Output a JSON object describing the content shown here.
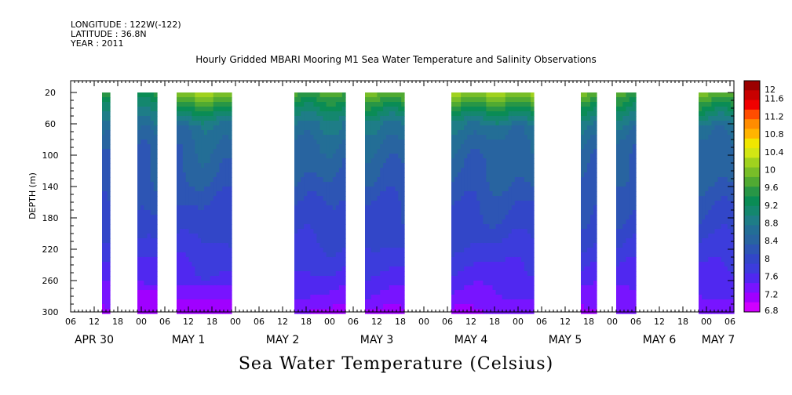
{
  "header": {
    "longitude": "LONGITUDE : 122W(-122)",
    "latitude": "LATITUDE : 36.8N",
    "year": "YEAR : 2011"
  },
  "title": "Hourly Gridded MBARI Mooring M1 Sea Water Temperature and Salinity Observations",
  "chart_data": {
    "type": "heatmap",
    "title": "Hourly Gridded MBARI Mooring M1 Sea Water Temperature and Salinity Observations",
    "xlabel": "",
    "ylabel": "DEPTH (m)",
    "colorbar_label": "Sea Water Temperature (Celsius)",
    "x_unit": "hours since APR 30 06:00, 2011",
    "xlim": [
      0,
      169
    ],
    "ylim": [
      300,
      5
    ],
    "y_ticks": [
      20,
      60,
      100,
      140,
      180,
      220,
      260,
      300
    ],
    "x_hour_tick_labels": [
      "06",
      "12",
      "18",
      "00",
      "06",
      "12",
      "18",
      "00",
      "06",
      "12",
      "18",
      "00",
      "06",
      "12",
      "18",
      "00",
      "06",
      "12",
      "18",
      "00",
      "06",
      "12",
      "18",
      "00",
      "06",
      "12",
      "18",
      "00",
      "06"
    ],
    "x_day_labels": [
      {
        "label": "APR 30",
        "hour": 6
      },
      {
        "label": "MAY  1",
        "hour": 30
      },
      {
        "label": "MAY  2",
        "hour": 54
      },
      {
        "label": "MAY  3",
        "hour": 78
      },
      {
        "label": "MAY  4",
        "hour": 102
      },
      {
        "label": "MAY  5",
        "hour": 126
      },
      {
        "label": "MAY  6",
        "hour": 150
      },
      {
        "label": "MAY  7",
        "hour": 174
      }
    ],
    "colorbar_levels": [
      12,
      11.6,
      11.2,
      10.8,
      10.4,
      10,
      9.6,
      9.2,
      8.8,
      8.4,
      8,
      7.6,
      7.2,
      6.8
    ],
    "colorbar_colors": [
      "#9b0000",
      "#c80000",
      "#f00000",
      "#ff4d00",
      "#ff8c00",
      "#ffb400",
      "#f0e600",
      "#d2e614",
      "#a0d21e",
      "#78be28",
      "#50aa32",
      "#289646",
      "#0a8c55",
      "#14876e",
      "#1e7d87",
      "#236e96",
      "#2864a0",
      "#2d55b4",
      "#3246c8",
      "#3c3cdc",
      "#5028f0",
      "#7814ff",
      "#a000ff",
      "#d000ff"
    ],
    "observation_segments": [
      {
        "start": 8,
        "end": 10,
        "surface_max": 9.6,
        "bottom_min": 7.2
      },
      {
        "start": 17,
        "end": 22,
        "surface_max": 9.4,
        "bottom_min": 6.9
      },
      {
        "start": 27,
        "end": 41,
        "surface_max": 10.0,
        "bottom_min": 7.0
      },
      {
        "start": 57,
        "end": 70,
        "surface_max": 9.6,
        "bottom_min": 7.2
      },
      {
        "start": 75,
        "end": 85,
        "surface_max": 9.8,
        "bottom_min": 7.4
      },
      {
        "start": 97,
        "end": 118,
        "surface_max": 10.0,
        "bottom_min": 7.4
      },
      {
        "start": 130,
        "end": 134,
        "surface_max": 9.8,
        "bottom_min": 7.4
      },
      {
        "start": 139,
        "end": 144,
        "surface_max": 9.6,
        "bottom_min": 7.3
      },
      {
        "start": 160,
        "end": 169,
        "surface_max": 9.8,
        "bottom_min": 7.2
      }
    ],
    "depth_profile": [
      {
        "depth": 20,
        "temp": 9.4
      },
      {
        "depth": 40,
        "temp": 9.0
      },
      {
        "depth": 60,
        "temp": 8.7
      },
      {
        "depth": 80,
        "temp": 8.5
      },
      {
        "depth": 100,
        "temp": 8.4
      },
      {
        "depth": 130,
        "temp": 8.3
      },
      {
        "depth": 160,
        "temp": 8.1
      },
      {
        "depth": 190,
        "temp": 8.0
      },
      {
        "depth": 220,
        "temp": 7.8
      },
      {
        "depth": 250,
        "temp": 7.6
      },
      {
        "depth": 280,
        "temp": 7.4
      },
      {
        "depth": 300,
        "temp": 7.2
      }
    ],
    "grid": false,
    "legend": "right"
  },
  "x_title": "Sea Water Temperature (Celsius)"
}
